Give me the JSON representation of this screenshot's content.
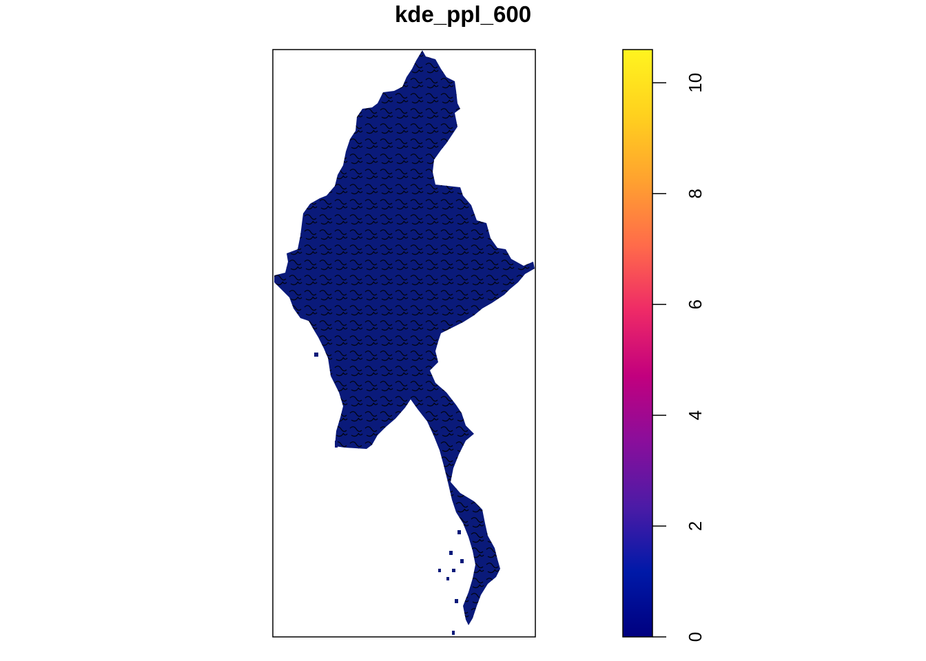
{
  "chart_data": {
    "type": "heatmap",
    "title": "kde_ppl_600",
    "xlabel": "",
    "ylabel": "",
    "color_scale": {
      "min": 0,
      "max": 10.6,
      "ticks": [
        0,
        2,
        4,
        6,
        8,
        10
      ],
      "tick_labels": [
        "0",
        "2",
        "4",
        "6",
        "8",
        "10"
      ],
      "colors": [
        "#00007F",
        "#0019A8",
        "#4C1BA6",
        "#8A0E9B",
        "#C2007E",
        "#EE2A67",
        "#FF6B4A",
        "#FFA22F",
        "#FFD11E",
        "#FFF41F"
      ]
    },
    "raster_fill_color": "#0A1A7A",
    "contours": true,
    "legend_position": "right",
    "grid": false
  }
}
